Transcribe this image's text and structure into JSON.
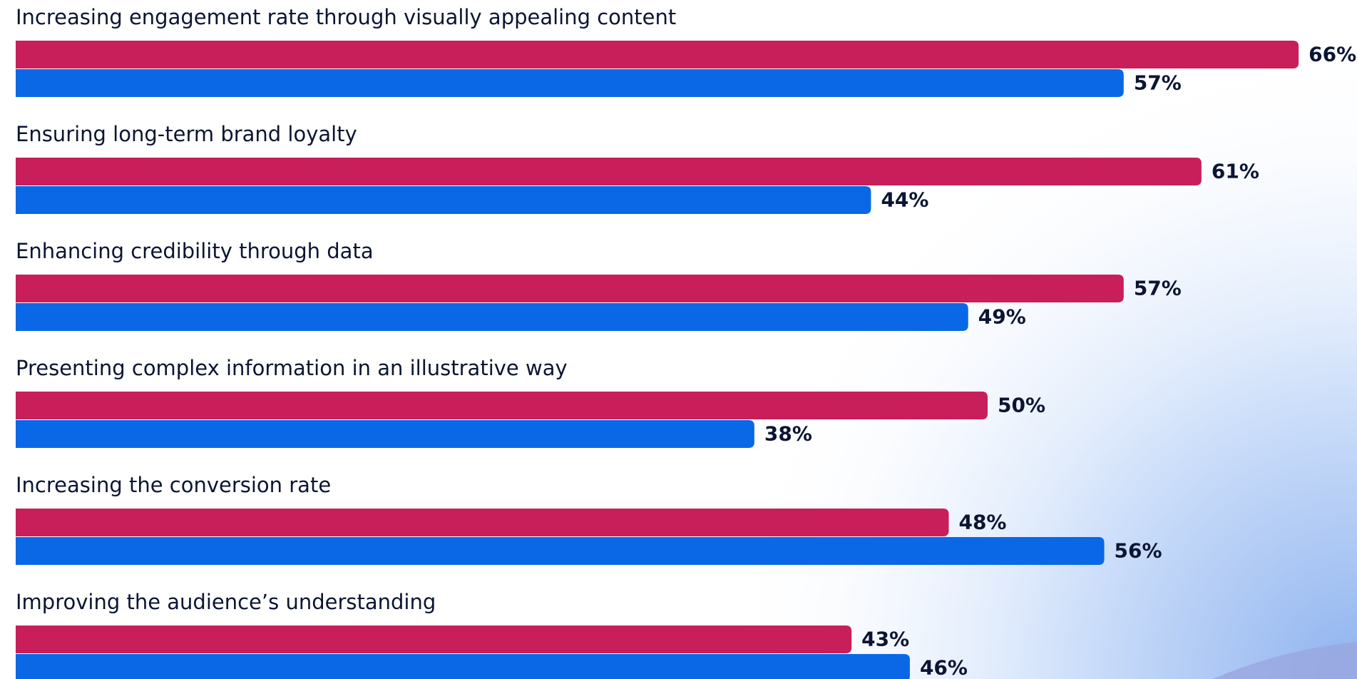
{
  "chart_data": {
    "type": "bar",
    "orientation": "horizontal",
    "categories": [
      "Increasing engagement rate through visually appealing content",
      "Ensuring long-term brand loyalty",
      "Enhancing credibility through data",
      "Presenting complex information in an illustrative way",
      "Increasing the conversion rate",
      "Improving the audience’s understanding"
    ],
    "series": [
      {
        "color": "#c81e5a",
        "values": [
          66,
          61,
          57,
          50,
          48,
          43
        ],
        "value_labels": [
          "66%",
          "61%",
          "57%",
          "50%",
          "48%",
          "43%"
        ]
      },
      {
        "color": "#0a68e6",
        "values": [
          57,
          44,
          49,
          38,
          56,
          46
        ],
        "value_labels": [
          "57%",
          "44%",
          "49%",
          "38%",
          "56%",
          "46%"
        ]
      }
    ]
  }
}
